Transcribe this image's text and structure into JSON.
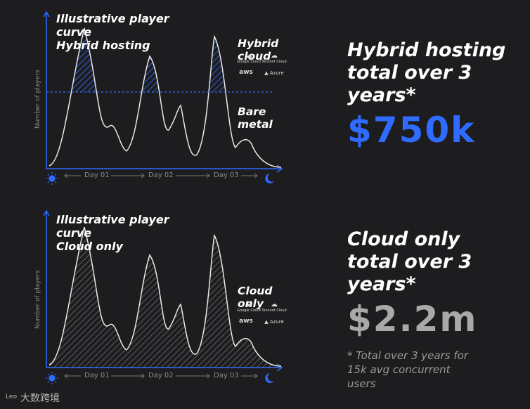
{
  "colors": {
    "accent": "#2f6bff",
    "curve": "#e9e9ea",
    "muted": "#9a9a9a"
  },
  "charts": [
    {
      "title": "Illustrative player\ncurve\nHybrid hosting",
      "y_axis_label": "Number of players",
      "days": [
        "Day 01",
        "Day 02",
        "Day 03"
      ],
      "regions": [
        "Hybrid cloud",
        "Bare metal"
      ],
      "logos": [
        "Google Cloud",
        "Tencent Cloud",
        "aws",
        "Azure"
      ],
      "summary_title": "Hybrid hosting\ntotal over 3\nyears*",
      "summary_value": "$750k"
    },
    {
      "title": "Illustrative player\ncurve\nCloud only",
      "y_axis_label": "Number of players",
      "days": [
        "Day 01",
        "Day 02",
        "Day 03"
      ],
      "regions": [
        "Cloud only"
      ],
      "logos": [
        "Google Cloud",
        "Tencent Cloud",
        "aws",
        "Azure"
      ],
      "summary_title": "Cloud only\ntotal over 3\nyears*",
      "summary_value": "$2.2m"
    }
  ],
  "footnote": "* Total over 3 years for\n15k avg concurrent\nusers",
  "watermark": "大数跨境"
}
